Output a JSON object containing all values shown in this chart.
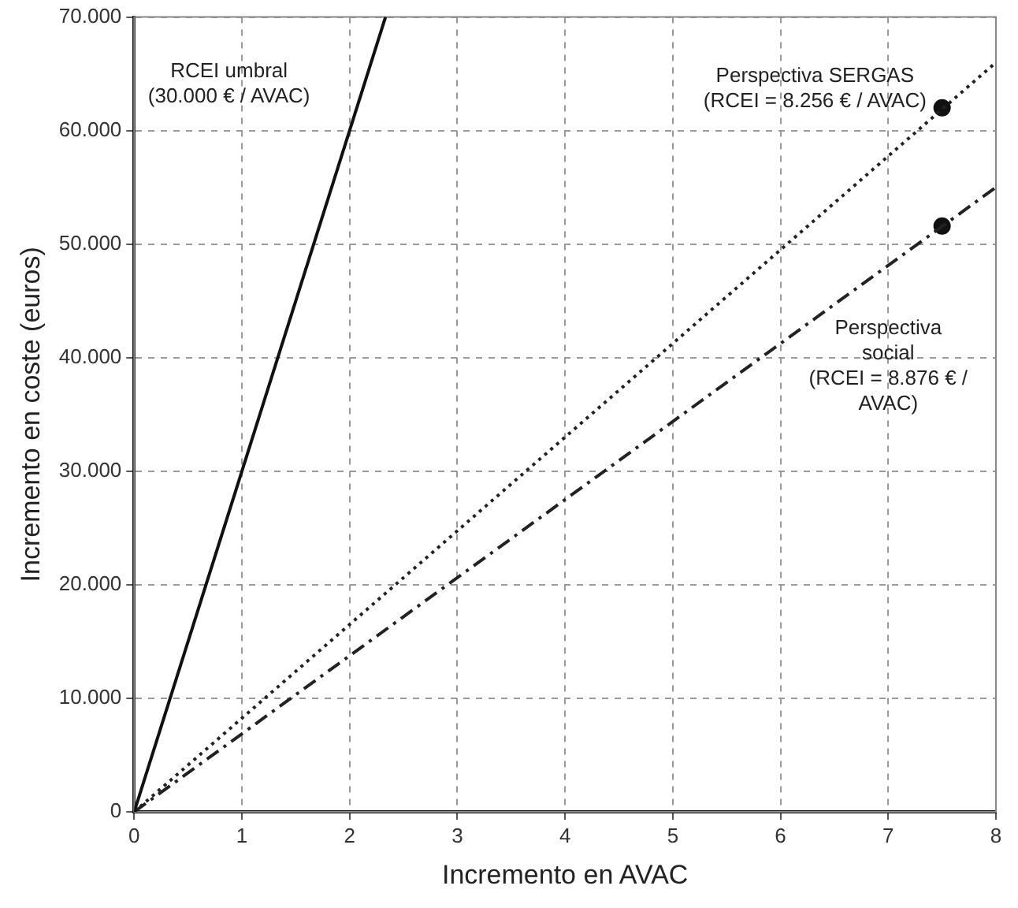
{
  "chart_data": {
    "type": "line",
    "xlabel": "Incremento en AVAC",
    "ylabel": "Incremento en coste (euros)",
    "xlim": [
      0,
      8
    ],
    "xticks": [
      0,
      1,
      2,
      3,
      4,
      5,
      6,
      7,
      8
    ],
    "ylim": [
      0,
      70000
    ],
    "yticks": [
      0,
      {
        "value": 10000,
        "label": "10.000"
      },
      {
        "value": 20000,
        "label": "20.000"
      },
      {
        "value": 30000,
        "label": "30.000"
      },
      {
        "value": 40000,
        "label": "40.000"
      },
      {
        "value": 50000,
        "label": "50.000"
      },
      {
        "value": 60000,
        "label": "60.000"
      },
      {
        "value": 70000,
        "label": "70.000"
      }
    ],
    "grid": true,
    "legend": false,
    "marker": "none",
    "series": [
      {
        "color": "#111111",
        "line_style": "solid",
        "x": [
          0,
          2.333
        ],
        "values": [
          0,
          70000
        ]
      },
      {
        "color": "#222222",
        "line_style": "dotted",
        "x": [
          0,
          8
        ],
        "values": [
          0,
          66000
        ]
      },
      {
        "color": "#222222",
        "line_style": "dashed",
        "x": [
          0,
          8
        ],
        "values": [
          0,
          55000
        ]
      },
      {
        "type": "scatter",
        "color": "#111111",
        "marker": "circle",
        "x": [
          7.5,
          7.5
        ],
        "values": [
          62000,
          51600
        ]
      }
    ],
    "annotations": [
      "RCEI umbral\n(30.000 € / AVAC)",
      "Perspectiva SERGAS\n(RCEI = 8.256 € / AVAC)",
      "Perspectiva\nsocial\n(RCEI = 8.876 € /\nAVAC)"
    ]
  }
}
